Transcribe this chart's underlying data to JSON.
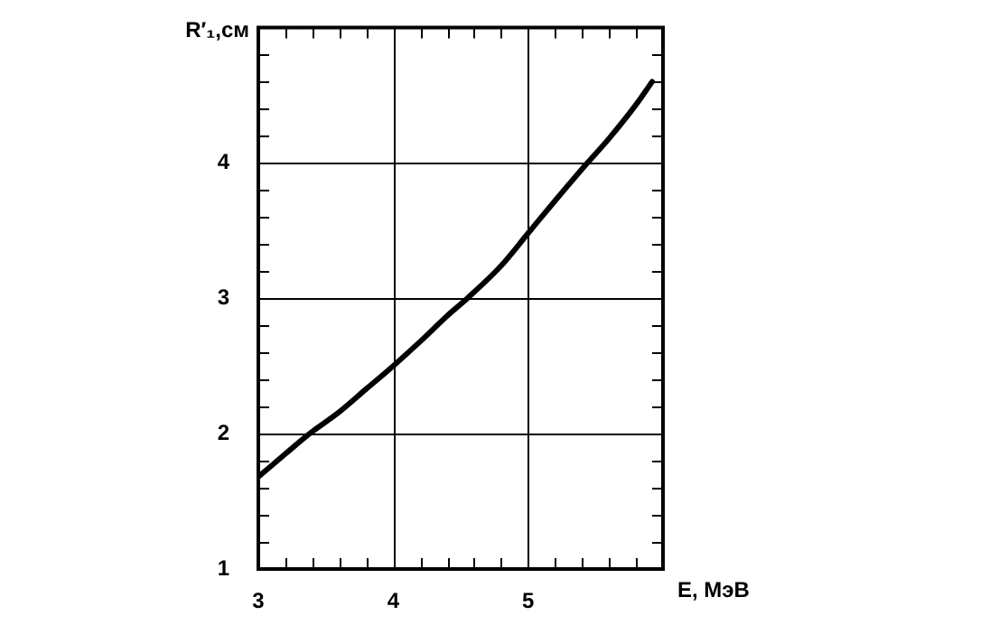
{
  "chart_data": {
    "type": "line",
    "xlabel": "E, МэВ",
    "ylabel": "R′₁,см",
    "x": [
      3,
      3.2,
      3.38,
      3.6,
      3.8,
      4,
      4.2,
      4.4,
      4.55,
      4.8,
      5,
      5.2,
      5.44,
      5.6,
      5.8,
      5.92
    ],
    "series": [
      {
        "color": "#000000",
        "values": [
          1.68,
          1.85,
          2.0,
          2.16,
          2.33,
          2.5,
          2.68,
          2.87,
          3.0,
          3.24,
          3.48,
          3.72,
          4.0,
          4.18,
          4.43,
          4.6
        ]
      }
    ],
    "xlim": [
      3,
      6
    ],
    "ylim": [
      1,
      5
    ],
    "xticks": [
      3,
      {
        "value": 3.2,
        "label": null
      },
      {
        "value": 3.4,
        "label": null
      },
      {
        "value": 3.6,
        "label": null
      },
      {
        "value": 3.8,
        "label": null
      },
      4,
      {
        "value": 4.2,
        "label": null
      },
      {
        "value": 4.4,
        "label": null
      },
      {
        "value": 4.6,
        "label": null
      },
      {
        "value": 4.8,
        "label": null
      },
      5,
      {
        "value": 5.2,
        "label": null
      },
      {
        "value": 5.4,
        "label": null
      },
      {
        "value": 5.6,
        "label": null
      },
      {
        "value": 5.8,
        "label": null
      }
    ],
    "yticks": [
      1,
      {
        "value": 1.2,
        "label": null
      },
      {
        "value": 1.4,
        "label": null
      },
      {
        "value": 1.6,
        "label": null
      },
      {
        "value": 1.8,
        "label": null
      },
      2,
      {
        "value": 2.2,
        "label": null
      },
      {
        "value": 2.4,
        "label": null
      },
      {
        "value": 2.6,
        "label": null
      },
      {
        "value": 2.8,
        "label": null
      },
      3,
      {
        "value": 3.2,
        "label": null
      },
      {
        "value": 3.4,
        "label": null
      },
      {
        "value": 3.6,
        "label": null
      },
      {
        "value": 3.8,
        "label": null
      },
      4,
      {
        "value": 4.2,
        "label": null
      },
      {
        "value": 4.4,
        "label": null
      },
      {
        "value": 4.6,
        "label": null
      },
      {
        "value": 4.8,
        "label": null
      }
    ],
    "grid": true,
    "legend": false,
    "marker": "none",
    "line_style": "solid"
  }
}
